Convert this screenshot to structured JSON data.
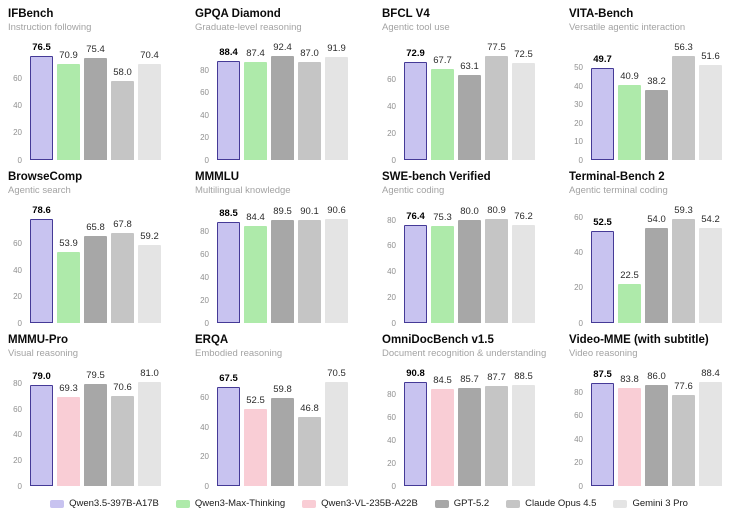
{
  "page": {
    "background": "#ffffff"
  },
  "models": [
    {
      "name": "Qwen3.5-397B-A17B",
      "color": "#c8c3f0",
      "border": "#453a97",
      "highlight": true
    },
    {
      "name": "Qwen3-Max-Thinking",
      "color": "#aeeaaa",
      "highlight": false
    },
    {
      "name": "Qwen3-VL-235B-A22B",
      "color": "#f9cdd5",
      "highlight": false
    },
    {
      "name": "GPT-5.2",
      "color": "#a7a7a7",
      "highlight": false
    },
    {
      "name": "Claude Opus 4.5",
      "color": "#c5c5c5",
      "highlight": false
    },
    {
      "name": "Gemini 3 Pro",
      "color": "#e4e4e4",
      "highlight": false
    }
  ],
  "chart_data": [
    {
      "type": "bar",
      "title": "IFBench",
      "subtitle": "Instruction following",
      "yticks": [
        0,
        20,
        40,
        60
      ],
      "grid": false,
      "legend_position": "bottom-shared",
      "series": [
        {
          "name": "Qwen3.5-397B-A17B",
          "value": 76.5
        },
        {
          "name": "Qwen3-Max-Thinking",
          "value": 70.9
        },
        {
          "name": "GPT-5.2",
          "value": 75.4
        },
        {
          "name": "Claude Opus 4.5",
          "value": 58.0
        },
        {
          "name": "Gemini 3 Pro",
          "value": 70.4
        }
      ]
    },
    {
      "type": "bar",
      "title": "GPQA Diamond",
      "subtitle": "Graduate-level reasoning",
      "yticks": [
        0,
        20,
        40,
        60,
        80
      ],
      "grid": false,
      "series": [
        {
          "name": "Qwen3.5-397B-A17B",
          "value": 88.4
        },
        {
          "name": "Qwen3-Max-Thinking",
          "value": 87.4
        },
        {
          "name": "GPT-5.2",
          "value": 92.4
        },
        {
          "name": "Claude Opus 4.5",
          "value": 87.0
        },
        {
          "name": "Gemini 3 Pro",
          "value": 91.9
        }
      ]
    },
    {
      "type": "bar",
      "title": "BFCL V4",
      "subtitle": "Agentic tool use",
      "yticks": [
        0,
        20,
        40,
        60
      ],
      "grid": false,
      "series": [
        {
          "name": "Qwen3.5-397B-A17B",
          "value": 72.9
        },
        {
          "name": "Qwen3-Max-Thinking",
          "value": 67.7
        },
        {
          "name": "GPT-5.2",
          "value": 63.1
        },
        {
          "name": "Claude Opus 4.5",
          "value": 77.5
        },
        {
          "name": "Gemini 3 Pro",
          "value": 72.5
        }
      ]
    },
    {
      "type": "bar",
      "title": "VITA-Bench",
      "subtitle": "Versatile agentic interaction",
      "yticks": [
        0,
        10,
        20,
        30,
        40,
        50
      ],
      "grid": false,
      "series": [
        {
          "name": "Qwen3.5-397B-A17B",
          "value": 49.7
        },
        {
          "name": "Qwen3-Max-Thinking",
          "value": 40.9
        },
        {
          "name": "GPT-5.2",
          "value": 38.2
        },
        {
          "name": "Claude Opus 4.5",
          "value": 56.3
        },
        {
          "name": "Gemini 3 Pro",
          "value": 51.6
        }
      ]
    },
    {
      "type": "bar",
      "title": "BrowseComp",
      "subtitle": "Agentic search",
      "yticks": [
        0,
        20,
        40,
        60
      ],
      "grid": false,
      "series": [
        {
          "name": "Qwen3.5-397B-A17B",
          "value": 78.6
        },
        {
          "name": "Qwen3-Max-Thinking",
          "value": 53.9
        },
        {
          "name": "GPT-5.2",
          "value": 65.8
        },
        {
          "name": "Claude Opus 4.5",
          "value": 67.8
        },
        {
          "name": "Gemini 3 Pro",
          "value": 59.2
        }
      ]
    },
    {
      "type": "bar",
      "title": "MMMLU",
      "subtitle": "Multilingual knowledge",
      "yticks": [
        0,
        20,
        40,
        60,
        80
      ],
      "grid": false,
      "series": [
        {
          "name": "Qwen3.5-397B-A17B",
          "value": 88.5
        },
        {
          "name": "Qwen3-Max-Thinking",
          "value": 84.4
        },
        {
          "name": "GPT-5.2",
          "value": 89.5
        },
        {
          "name": "Claude Opus 4.5",
          "value": 90.1
        },
        {
          "name": "Gemini 3 Pro",
          "value": 90.6
        }
      ]
    },
    {
      "type": "bar",
      "title": "SWE-bench Verified",
      "subtitle": "Agentic coding",
      "yticks": [
        0,
        20,
        40,
        60,
        80
      ],
      "grid": false,
      "series": [
        {
          "name": "Qwen3.5-397B-A17B",
          "value": 76.4
        },
        {
          "name": "Qwen3-Max-Thinking",
          "value": 75.3
        },
        {
          "name": "GPT-5.2",
          "value": 80.0
        },
        {
          "name": "Claude Opus 4.5",
          "value": 80.9
        },
        {
          "name": "Gemini 3 Pro",
          "value": 76.2
        }
      ]
    },
    {
      "type": "bar",
      "title": "Terminal-Bench 2",
      "subtitle": "Agentic terminal coding",
      "yticks": [
        0,
        20,
        40,
        60
      ],
      "grid": false,
      "series": [
        {
          "name": "Qwen3.5-397B-A17B",
          "value": 52.5
        },
        {
          "name": "Qwen3-Max-Thinking",
          "value": 22.5
        },
        {
          "name": "GPT-5.2",
          "value": 54.0
        },
        {
          "name": "Claude Opus 4.5",
          "value": 59.3
        },
        {
          "name": "Gemini 3 Pro",
          "value": 54.2
        }
      ]
    },
    {
      "type": "bar",
      "title": "MMMU-Pro",
      "subtitle": "Visual reasoning",
      "yticks": [
        0,
        20,
        40,
        60,
        80
      ],
      "grid": false,
      "series": [
        {
          "name": "Qwen3.5-397B-A17B",
          "value": 79.0
        },
        {
          "name": "Qwen3-VL-235B-A22B",
          "value": 69.3
        },
        {
          "name": "GPT-5.2",
          "value": 79.5
        },
        {
          "name": "Claude Opus 4.5",
          "value": 70.6
        },
        {
          "name": "Gemini 3 Pro",
          "value": 81.0
        }
      ]
    },
    {
      "type": "bar",
      "title": "ERQA",
      "subtitle": "Embodied reasoning",
      "yticks": [
        0,
        20,
        40,
        60
      ],
      "grid": false,
      "series": [
        {
          "name": "Qwen3.5-397B-A17B",
          "value": 67.5
        },
        {
          "name": "Qwen3-VL-235B-A22B",
          "value": 52.5
        },
        {
          "name": "GPT-5.2",
          "value": 59.8
        },
        {
          "name": "Claude Opus 4.5",
          "value": 46.8
        },
        {
          "name": "Gemini 3 Pro",
          "value": 70.5
        }
      ]
    },
    {
      "type": "bar",
      "title": "OmniDocBench v1.5",
      "subtitle": "Document recognition & understanding",
      "yticks": [
        0,
        20,
        40,
        60,
        80
      ],
      "grid": false,
      "series": [
        {
          "name": "Qwen3.5-397B-A17B",
          "value": 90.8
        },
        {
          "name": "Qwen3-VL-235B-A22B",
          "value": 84.5
        },
        {
          "name": "GPT-5.2",
          "value": 85.7
        },
        {
          "name": "Claude Opus 4.5",
          "value": 87.7
        },
        {
          "name": "Gemini 3 Pro",
          "value": 88.5
        }
      ]
    },
    {
      "type": "bar",
      "title": "Video-MME (with subtitle)",
      "subtitle": "Video reasoning",
      "yticks": [
        0,
        20,
        40,
        60,
        80
      ],
      "grid": false,
      "series": [
        {
          "name": "Qwen3.5-397B-A17B",
          "value": 87.5
        },
        {
          "name": "Qwen3-VL-235B-A22B",
          "value": 83.8
        },
        {
          "name": "GPT-5.2",
          "value": 86.0
        },
        {
          "name": "Claude Opus 4.5",
          "value": 77.6
        },
        {
          "name": "Gemini 3 Pro",
          "value": 88.4
        }
      ]
    }
  ]
}
